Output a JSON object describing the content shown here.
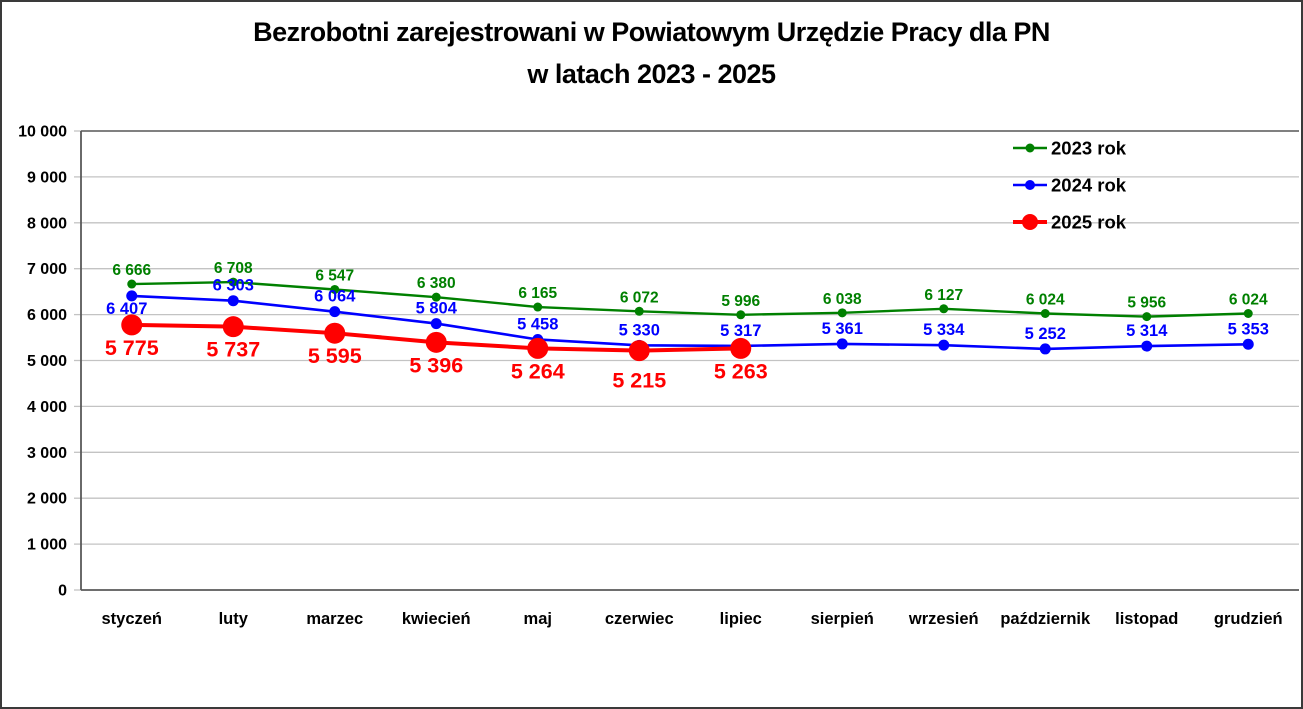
{
  "title": {
    "line1": "Bezrobotni zarejestrowani w Powiatowym Urzędzie Pracy dla PN",
    "line2": "w latach 2023 - 2025"
  },
  "chart_data": {
    "type": "line",
    "categories": [
      "styczeń",
      "luty",
      "marzec",
      "kwiecień",
      "maj",
      "czerwiec",
      "lipiec",
      "sierpień",
      "wrzesień",
      "październik",
      "listopad",
      "grudzień"
    ],
    "series": [
      {
        "name": "2023 rok",
        "color": "#008000",
        "values": [
          6666,
          6708,
          6547,
          6380,
          6165,
          6072,
          5996,
          6038,
          6127,
          6024,
          5956,
          6024
        ],
        "data_labels": "above"
      },
      {
        "name": "2024 rok",
        "color": "#0000ff",
        "values": [
          6407,
          6303,
          6064,
          5804,
          5458,
          5330,
          5317,
          5361,
          5334,
          5252,
          5314,
          5353
        ],
        "data_labels": "above"
      },
      {
        "name": "2025 rok",
        "color": "#ff0000",
        "values": [
          5775,
          5737,
          5595,
          5396,
          5264,
          5215,
          5263
        ],
        "data_labels": "below"
      }
    ],
    "ylim": [
      0,
      10000
    ],
    "ytick_step": 1000,
    "grid": "horizontal",
    "legend_position": "top-right"
  },
  "colors": {
    "background": "#ffffff",
    "text": "#000000",
    "axis": "#595959",
    "gridline": "#c3c3c3",
    "top_gridline": "#808080",
    "series_2023": "#008000",
    "series_2024": "#0000ff",
    "series_2025": "#ff0000"
  }
}
